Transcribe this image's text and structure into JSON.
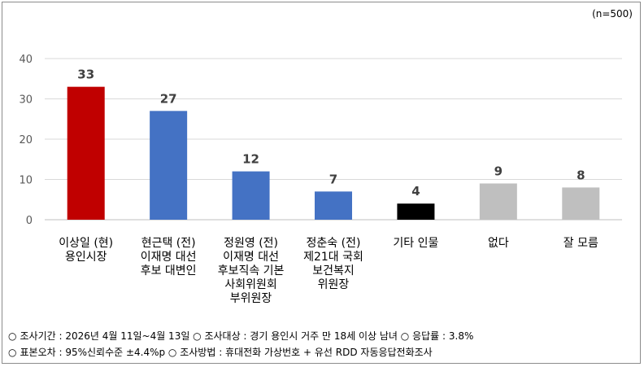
{
  "sample_note": "(n=500)",
  "chart_data": {
    "type": "bar",
    "categories": [
      [
        "이상일 (현)",
        "용인시장"
      ],
      [
        "현근택 (전)",
        "이재명 대선",
        "후보 대변인"
      ],
      [
        "정원영 (전)",
        "이재명 대선",
        "후보직속 기본",
        "사회위원회",
        "부위원장"
      ],
      [
        "정춘숙 (전)",
        "제21대 국회",
        "보건복지",
        "위원장"
      ],
      [
        "기타 인물"
      ],
      [
        "없다"
      ],
      [
        "잘 모름"
      ]
    ],
    "values": [
      33,
      27,
      12,
      7,
      4,
      9,
      8
    ],
    "value_labels": [
      "33",
      "27",
      "12",
      "7",
      "4",
      "9",
      "8"
    ],
    "colors": [
      "#c00000",
      "#4472c4",
      "#4472c4",
      "#4472c4",
      "#000000",
      "#bfbfbf",
      "#bfbfbf"
    ],
    "yticks": [
      "0",
      "10",
      "20",
      "30",
      "40"
    ],
    "ylim": [
      0,
      40
    ],
    "title": "",
    "xlabel": "",
    "ylabel": "",
    "grid": true,
    "legend": false
  },
  "footer": {
    "line1": {
      "bullet": "○",
      "text": "조사기간 : 2026년 4월 11일~4월 13일 ○ 조사대상 : 경기 용인시 거주 만 18세 이상 남녀 ○ 응답률 : 3.8%"
    },
    "line2": {
      "bullet": "○",
      "text": "표본오차 : 95%신뢰수준 ±4.4%p ○ 조사방법 : 휴대전화 가상번호 + 유선 RDD 자동응답전화조사"
    }
  }
}
